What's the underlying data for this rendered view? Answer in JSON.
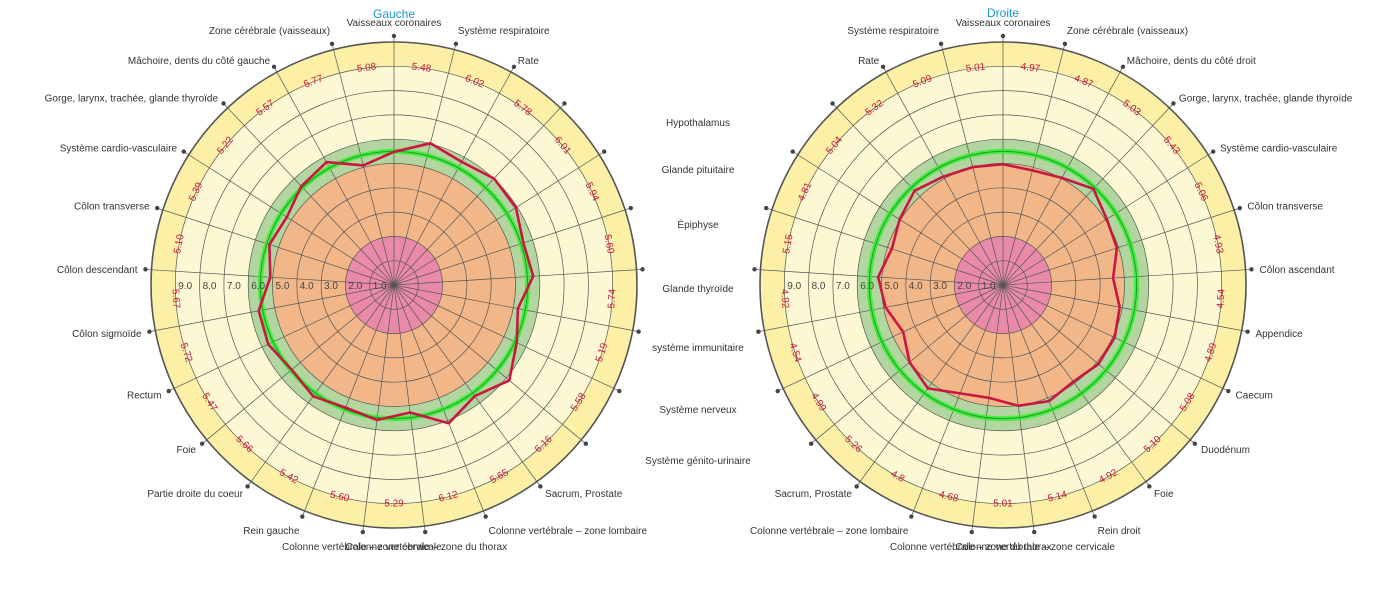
{
  "chart_data": [
    {
      "type": "radar",
      "title": "Gauche",
      "rings": [
        1.0,
        2.0,
        3.0,
        4.0,
        5.0,
        6.0,
        7.0,
        8.0,
        9.0
      ],
      "ring_labels": [
        "1.0",
        "2.0",
        "3.0",
        "4.0",
        "5.0",
        "6.0",
        "7.0",
        "8.0",
        "9.0"
      ],
      "zones": [
        {
          "from": 0,
          "to": 2,
          "color": "#e98aa8"
        },
        {
          "from": 2,
          "to": 5,
          "color": "#f2b789"
        },
        {
          "from": 5,
          "to": 6,
          "color": "#b3d6a0"
        },
        {
          "from": 6,
          "to": 9,
          "color": "#fbf8d3"
        },
        {
          "from": 9,
          "to": 10,
          "color": "#fbf0a6"
        }
      ],
      "reference_circle": 5.5,
      "reference_color": "#33ee33",
      "line_color": "#c8183f",
      "categories": [
        "Vaisseaux coronaires",
        "Système respiratoire",
        "Rate",
        "Hypothalamus",
        "Glande pituitaire",
        "Épiphyse",
        "Glande thyroïde",
        "système immunitaire",
        "Système nerveux",
        "Système génito-urinaire",
        "Sacrum, Prostate",
        "Colonne vertébrale – zone lombaire",
        "Colonne vertébrale – zone du thorax",
        "Colonne vertébrale – zone cervicale",
        "Rein gauche",
        "Partie droite du coeur",
        "Foie",
        "Rectum",
        "Côlon sigmoïde",
        "Côlon descendant",
        "Côlon transverse",
        "Système cardio-vasculaire",
        "Gorge, larynx, trachée, glande thyroïde",
        "Mâchoire, dents du côté gauche",
        "Zone cérébrale (vaisseaux)"
      ],
      "show_category_labels": [
        true,
        true,
        true,
        false,
        false,
        false,
        false,
        false,
        false,
        false,
        true,
        true,
        true,
        true,
        true,
        true,
        true,
        true,
        true,
        true,
        true,
        true,
        true,
        true,
        true
      ],
      "values": [
        5.48,
        6.02,
        5.78,
        6.01,
        5.94,
        5.6,
        5.74,
        5.19,
        5.58,
        6.16,
        5.65,
        6.12,
        5.29,
        5.6,
        5.42,
        5.66,
        5.47,
        5.72,
        5.67,
        5.1,
        5.39,
        5.22,
        5.57,
        5.77,
        5.08
      ],
      "value_labels": [
        "5.48",
        "6.02",
        "5.78",
        "6.01",
        "5.94",
        "5.60",
        "5.74",
        "5.19",
        "5.58",
        "6.16",
        "5.65",
        "6.12",
        "5.29",
        "5.60",
        "5.42",
        "5.66",
        "5.47",
        "5.72",
        "5.67",
        "5.10",
        "5.39",
        "5.22",
        "5.57",
        "5.77",
        "5.08"
      ]
    },
    {
      "type": "radar",
      "title": "Droite",
      "rings": [
        1.0,
        2.0,
        3.0,
        4.0,
        5.0,
        6.0,
        7.0,
        8.0,
        9.0
      ],
      "ring_labels": [
        "1.0",
        "2.0",
        "3.0",
        "4.0",
        "5.0",
        "6.0",
        "7.0",
        "8.0",
        "9.0"
      ],
      "zones": [
        {
          "from": 0,
          "to": 2,
          "color": "#e98aa8"
        },
        {
          "from": 2,
          "to": 5,
          "color": "#f2b789"
        },
        {
          "from": 5,
          "to": 6,
          "color": "#b3d6a0"
        },
        {
          "from": 6,
          "to": 9,
          "color": "#fbf8d3"
        },
        {
          "from": 9,
          "to": 10,
          "color": "#fbf0a6"
        }
      ],
      "reference_circle": 5.5,
      "reference_color": "#33ee33",
      "line_color": "#c8183f",
      "categories": [
        "Vaisseaux coronaires",
        "Zone cérébrale (vaisseaux)",
        "Mâchoire, dents du côté droit",
        "Gorge, larynx, trachée, glande thyroïde",
        "Système cardio-vasculaire",
        "Côlon transverse",
        "Côlon ascendant",
        "Appendice",
        "Caecum",
        "Duodénum",
        "Foie",
        "Rein droit",
        "Colonne vertébrale – zone cervicale",
        "Colonne vertébrale – zone du thorax",
        "Colonne vertébrale – zone lombaire",
        "Sacrum, Prostate",
        "Système génito-urinaire",
        "Système nerveux",
        "système immunitaire",
        "Glande thyroïde",
        "Épiphyse",
        "Glande pituitaire",
        "Hypothalamus",
        "Rate",
        "Système respiratoire"
      ],
      "show_category_labels": [
        true,
        true,
        true,
        true,
        true,
        true,
        true,
        true,
        true,
        true,
        true,
        true,
        true,
        true,
        true,
        true,
        false,
        false,
        false,
        false,
        false,
        false,
        false,
        true,
        true
      ],
      "values": [
        4.97,
        4.87,
        5.03,
        5.43,
        5.06,
        4.93,
        4.54,
        4.89,
        5.08,
        5.1,
        4.92,
        5.14,
        5.01,
        4.68,
        4.8,
        5.26,
        4.99,
        4.54,
        4.92,
        5.15,
        4.81,
        5.04,
        5.32,
        5.09,
        5.01
      ],
      "value_labels": [
        "4.97",
        "4.87",
        "5.03",
        "5.43",
        "5.06",
        "4.93",
        "4.54",
        "4.89",
        "5.08",
        "5.10",
        "4.92",
        "5.14",
        "5.01",
        "4.68",
        "4.8",
        "5.26",
        "4.99",
        "4.54",
        "4.92",
        "5.15",
        "4.81",
        "5.04",
        "5.32",
        "5.09",
        "5.01"
      ]
    }
  ],
  "outer_labels": {
    "left": [
      "Hypothalamus",
      "Glande pituitaire",
      "Épiphyse",
      "Glande thyroïde",
      "système immunitaire",
      "Système nerveux",
      "Système génito-urinaire"
    ]
  }
}
